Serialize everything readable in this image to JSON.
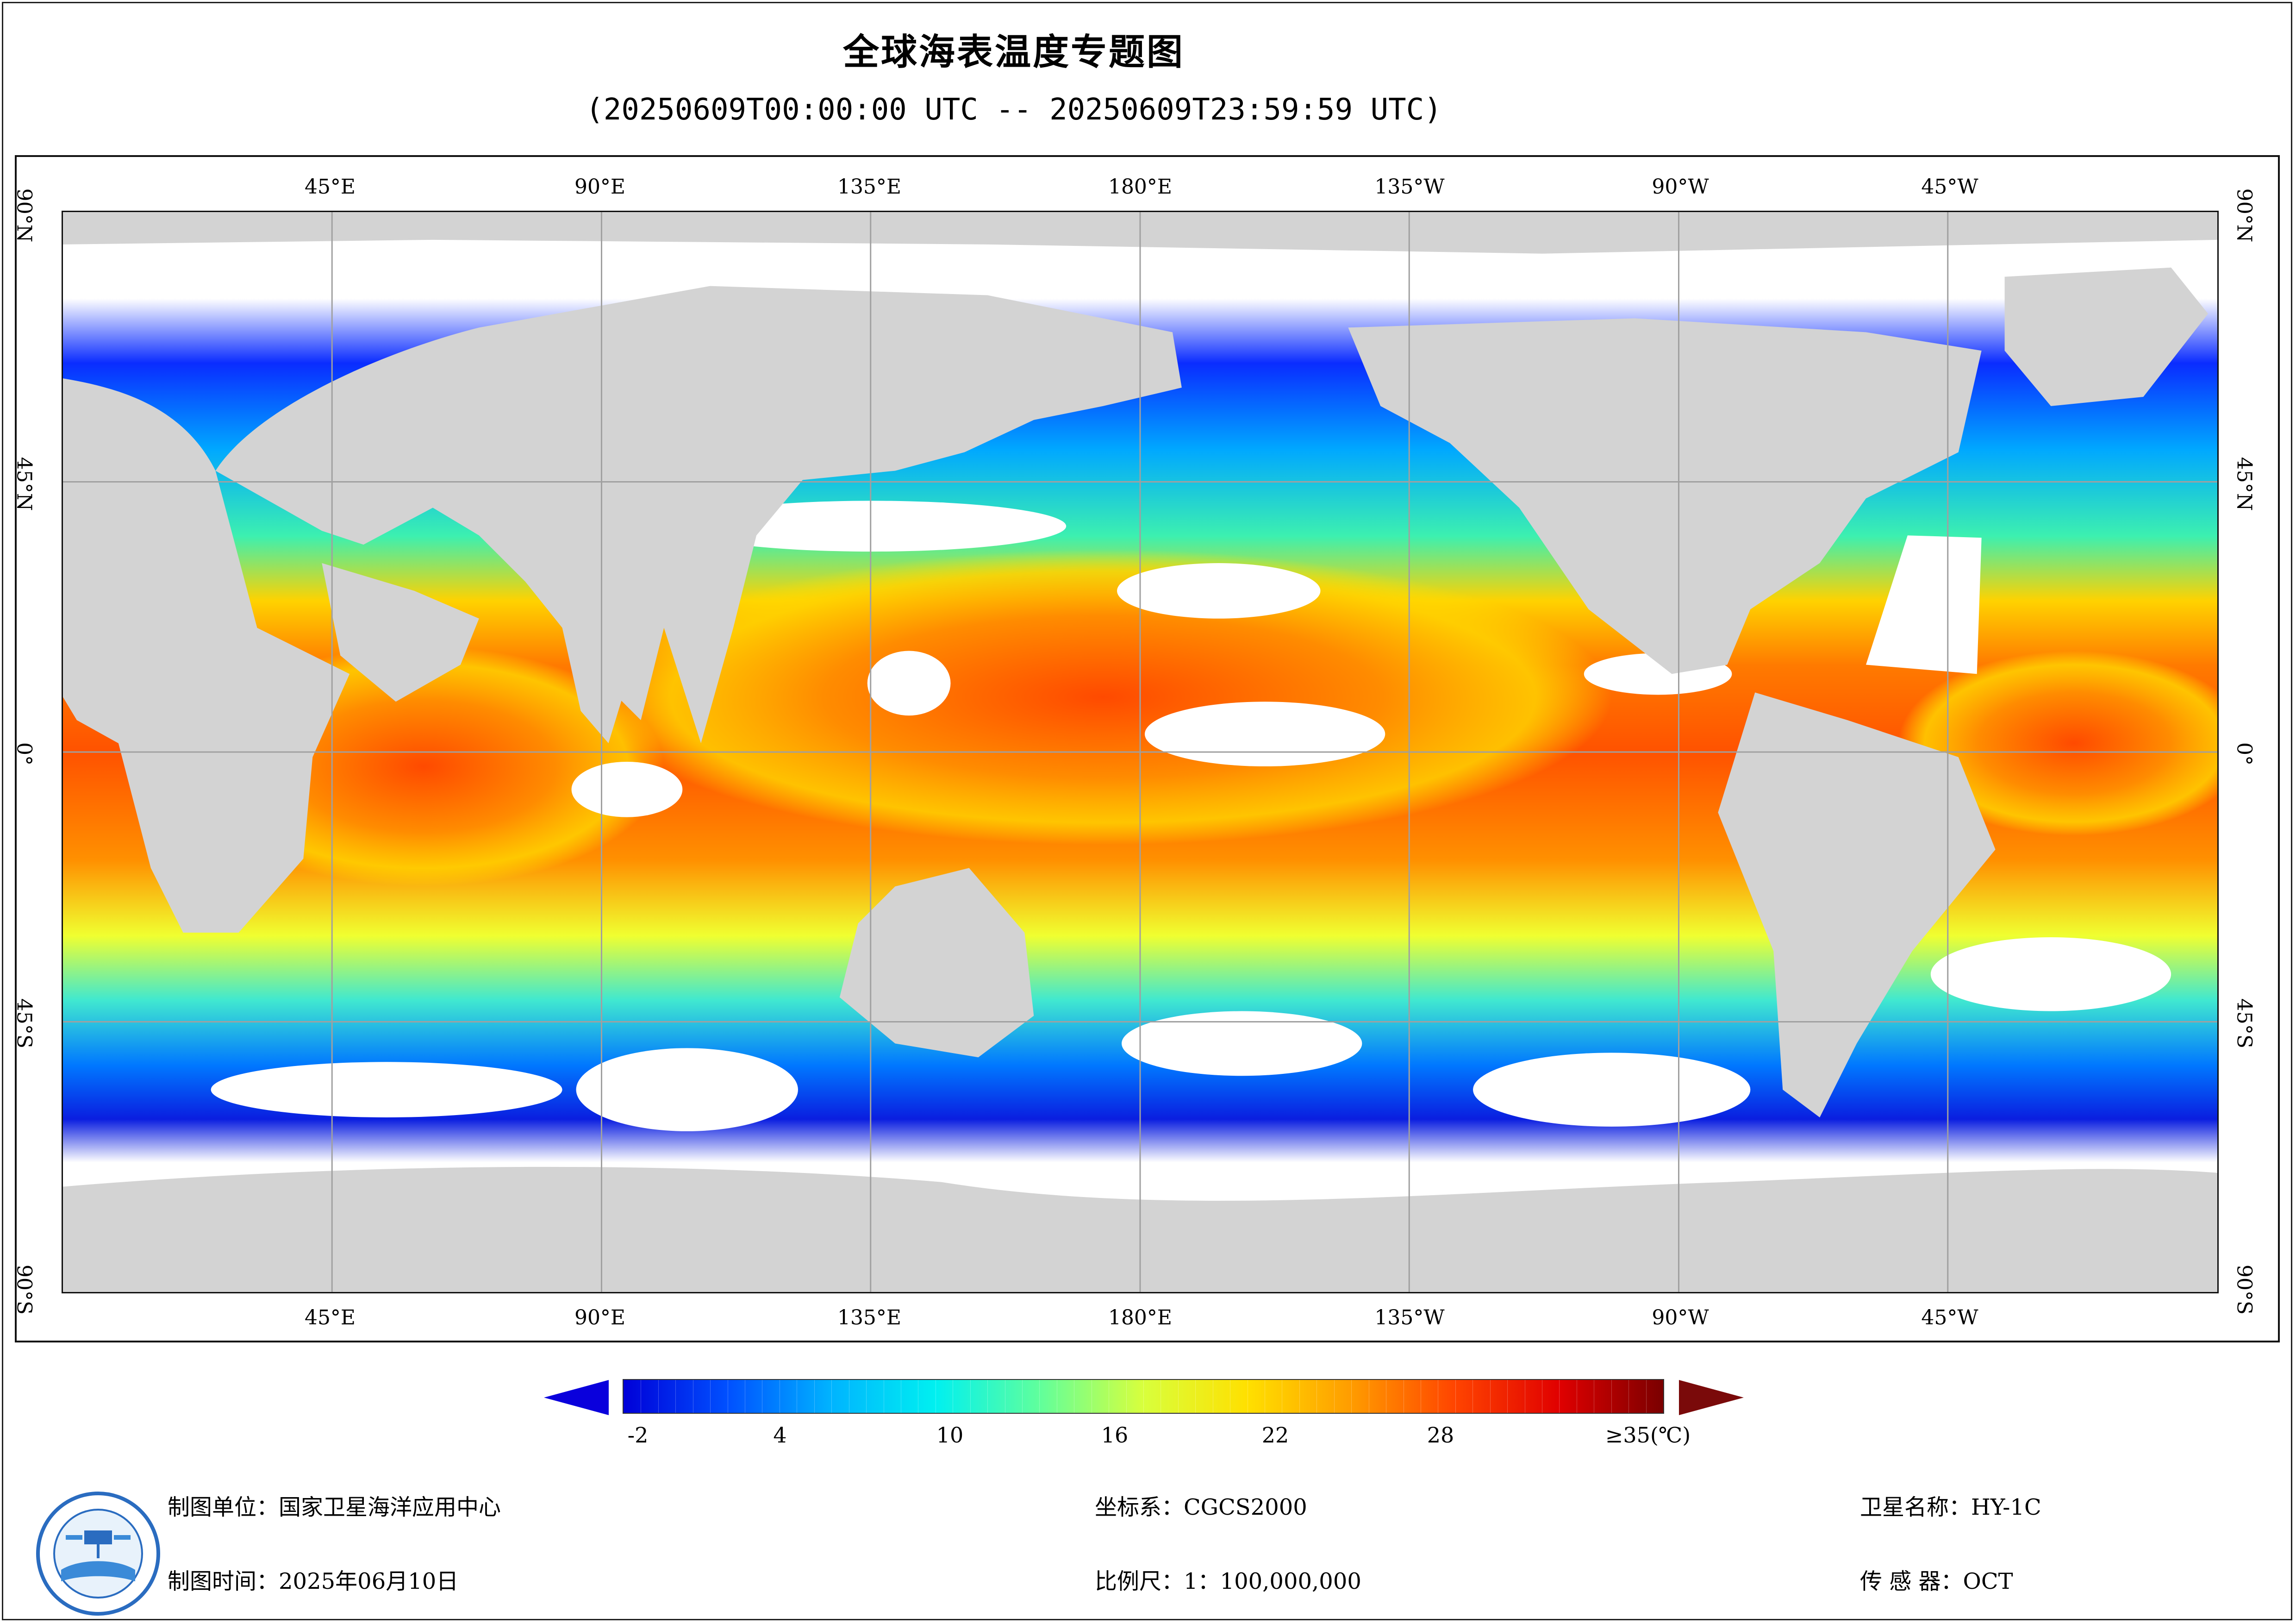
{
  "title": "全球海表温度专题图",
  "subtitle": "(20250609T00:00:00 UTC -- 20250609T23:59:59 UTC)",
  "map": {
    "longitude_labels": [
      "45°E",
      "90°E",
      "135°E",
      "180°E",
      "135°W",
      "90°W",
      "45°W"
    ],
    "latitude_labels": [
      "90°N",
      "45°N",
      "0°",
      "45°S",
      "90°S"
    ],
    "colors": {
      "land": "#d3d3d3",
      "no_data": "#ffffff",
      "graticule": "#a0a0a0"
    }
  },
  "colorbar": {
    "tick_labels": [
      "-2",
      "4",
      "10",
      "16",
      "22",
      "28",
      "≥35(℃)"
    ],
    "min": -2,
    "max": 35,
    "unit": "℃",
    "color_stops": [
      "#0000d8",
      "#0050ff",
      "#00b4ff",
      "#00f0f0",
      "#60ff9c",
      "#d8ff3c",
      "#ffe000",
      "#ff9c00",
      "#ff4400",
      "#e00000",
      "#7a0000"
    ]
  },
  "footer": {
    "mapping_unit": "制图单位：国家卫星海洋应用中心",
    "mapping_time": "制图时间：2025年06月10日",
    "coordinate_system": "坐标系：CGCS2000",
    "scale": "比例尺：1：100,000,000",
    "satellite": "卫星名称：HY-1C",
    "sensor": "传 感 器：OCT"
  }
}
